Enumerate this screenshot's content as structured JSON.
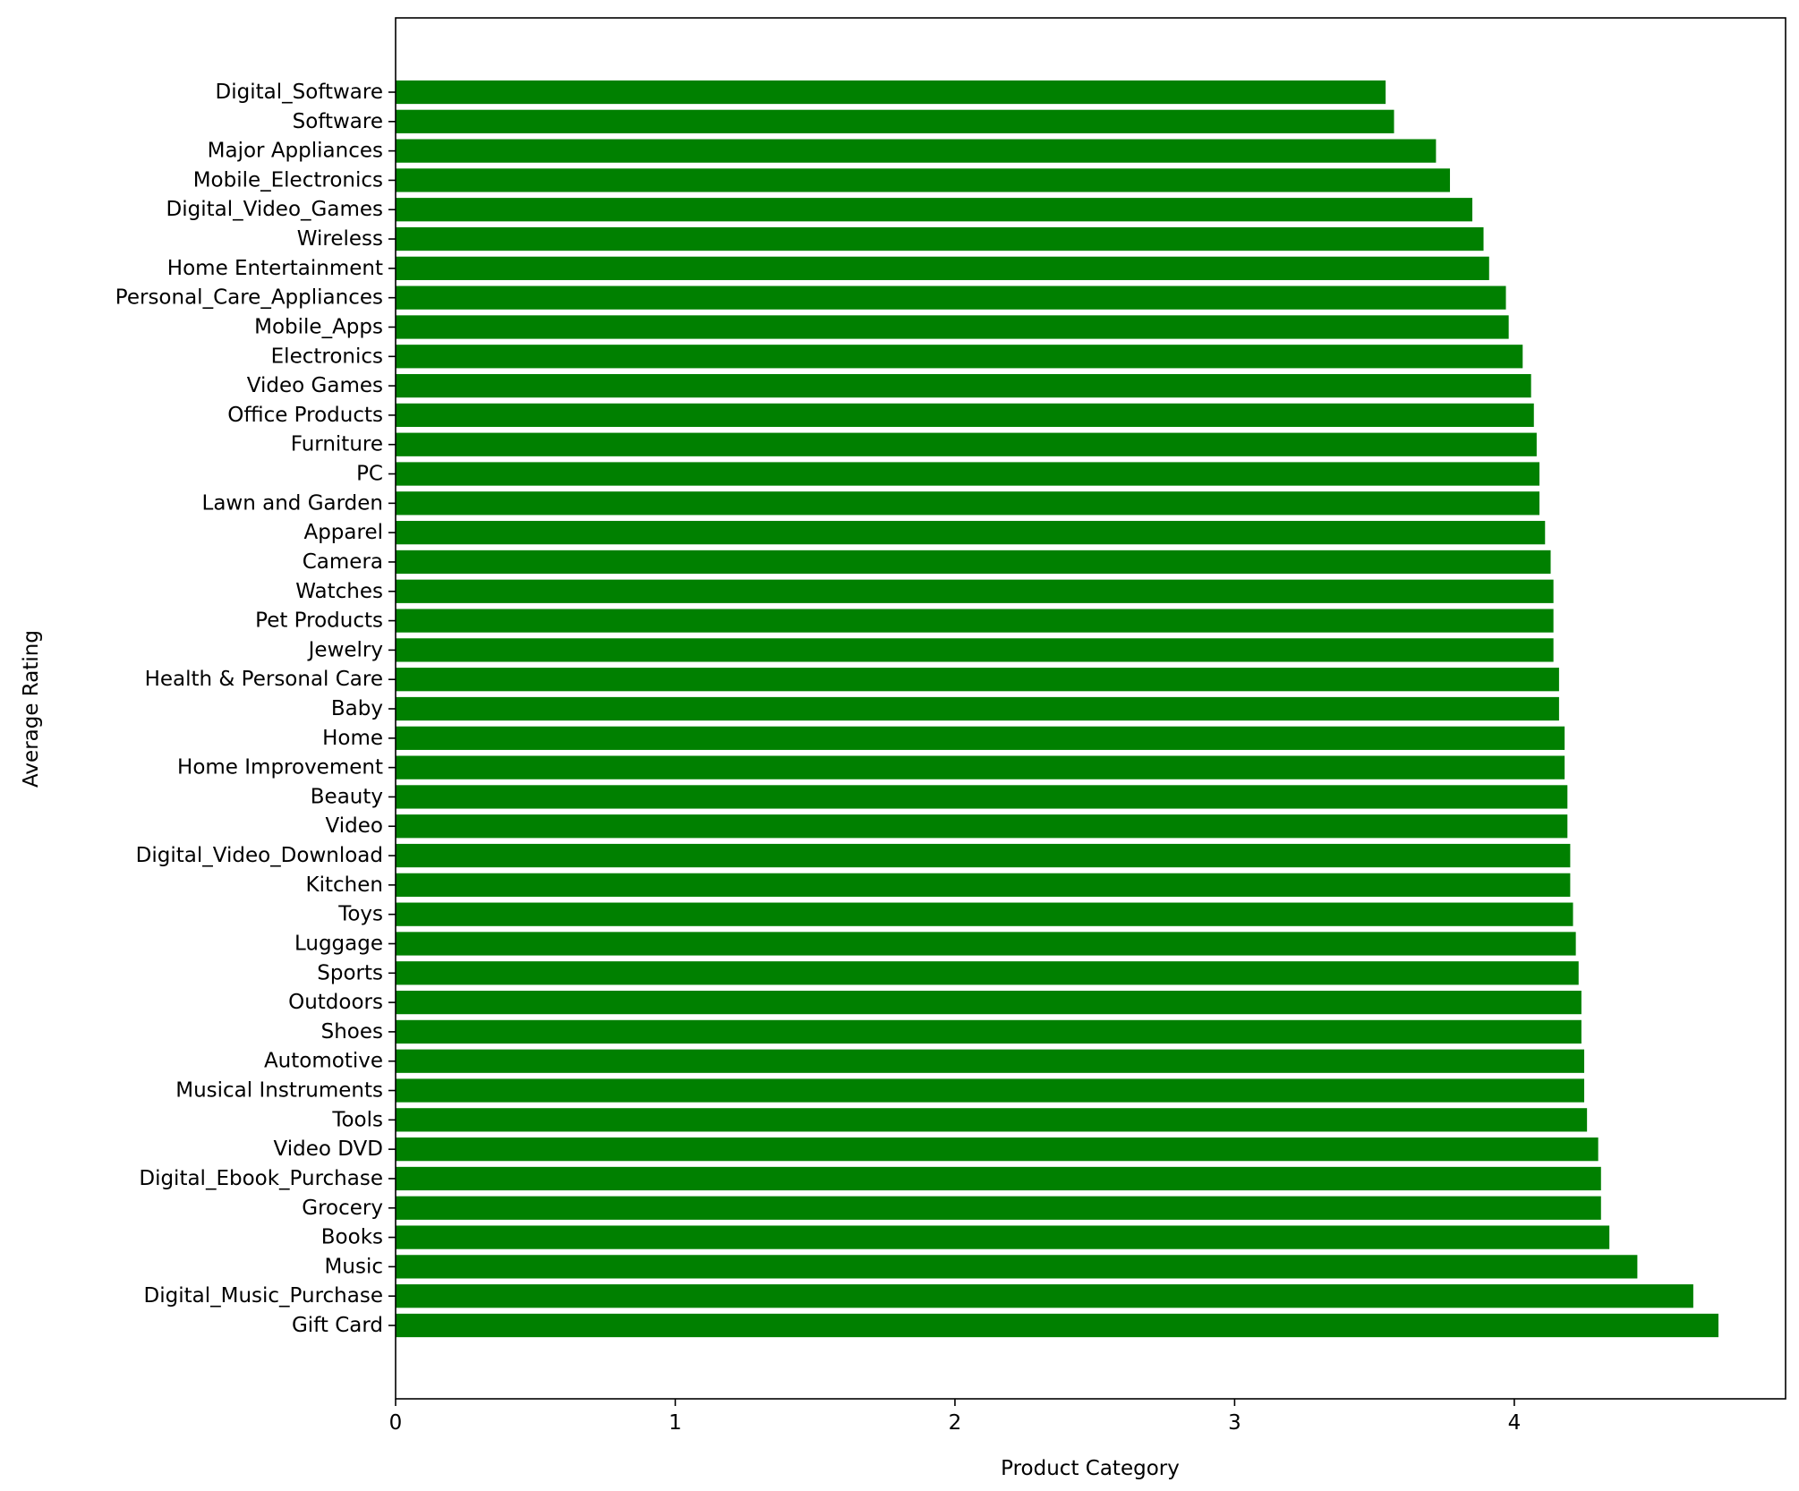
{
  "chart_data": {
    "type": "bar",
    "orientation": "horizontal",
    "xlabel": "Product Category",
    "ylabel": "Average Rating",
    "xlim": [
      0,
      4.97
    ],
    "xticks": [
      0,
      1,
      2,
      3,
      4
    ],
    "bar_color": "#008000",
    "grid": false,
    "legend": "none",
    "categories": [
      "Digital_Software",
      "Software",
      "Major Appliances",
      "Mobile_Electronics",
      "Digital_Video_Games",
      "Wireless",
      "Home Entertainment",
      "Personal_Care_Appliances",
      "Mobile_Apps",
      "Electronics",
      "Video Games",
      "Office Products",
      "Furniture",
      "PC",
      "Lawn and Garden",
      "Apparel",
      "Camera",
      "Watches",
      "Pet Products",
      "Jewelry",
      "Health & Personal Care",
      "Baby",
      "Home",
      "Home Improvement",
      "Beauty",
      "Video",
      "Digital_Video_Download",
      "Kitchen",
      "Toys",
      "Luggage",
      "Sports",
      "Outdoors",
      "Shoes",
      "Automotive",
      "Musical Instruments",
      "Tools",
      "Video DVD",
      "Digital_Ebook_Purchase",
      "Grocery",
      "Books",
      "Music",
      "Digital_Music_Purchase",
      "Gift Card"
    ],
    "values": [
      3.54,
      3.57,
      3.72,
      3.77,
      3.85,
      3.89,
      3.91,
      3.97,
      3.98,
      4.03,
      4.06,
      4.07,
      4.08,
      4.09,
      4.09,
      4.11,
      4.13,
      4.14,
      4.14,
      4.14,
      4.16,
      4.16,
      4.18,
      4.18,
      4.19,
      4.19,
      4.2,
      4.2,
      4.21,
      4.22,
      4.23,
      4.24,
      4.24,
      4.25,
      4.25,
      4.26,
      4.3,
      4.31,
      4.31,
      4.34,
      4.44,
      4.64,
      4.73
    ]
  }
}
